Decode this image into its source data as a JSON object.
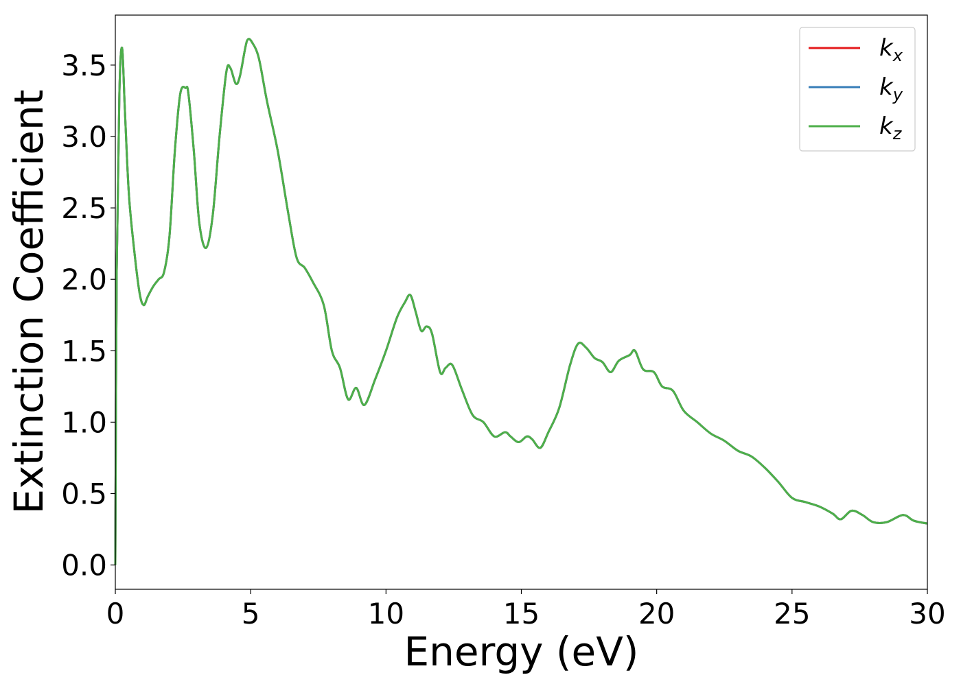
{
  "chart_data": {
    "type": "line",
    "title": "",
    "xlabel": "Energy (eV)",
    "ylabel": "Extinction Coefficient",
    "xlim": [
      0,
      30
    ],
    "ylim": [
      -0.17,
      3.85
    ],
    "xticks": [
      0,
      5,
      10,
      15,
      20,
      25,
      30
    ],
    "xtick_labels": [
      "0",
      "5",
      "10",
      "15",
      "20",
      "25",
      "30"
    ],
    "yticks": [
      0.0,
      0.5,
      1.0,
      1.5,
      2.0,
      2.5,
      3.0,
      3.5
    ],
    "ytick_labels": [
      "0.0",
      "0.5",
      "1.0",
      "1.5",
      "2.0",
      "2.5",
      "3.0",
      "3.5"
    ],
    "grid": false,
    "legend_position": "top-right",
    "series": [
      {
        "name": "k",
        "subscript": "x",
        "color": "#e41a1c",
        "x": [
          0,
          0.05,
          0.15,
          0.25,
          0.35,
          0.5,
          0.7,
          0.9,
          1.05,
          1.2,
          1.4,
          1.6,
          1.8,
          2.0,
          2.2,
          2.4,
          2.6,
          2.7,
          2.9,
          3.1,
          3.35,
          3.6,
          3.85,
          4.1,
          4.25,
          4.45,
          4.6,
          4.8,
          4.9,
          5.05,
          5.3,
          5.6,
          6.0,
          6.4,
          6.7,
          7.0,
          7.3,
          7.7,
          8.0,
          8.3,
          8.6,
          8.9,
          9.2,
          9.6,
          10.0,
          10.4,
          10.7,
          10.9,
          11.1,
          11.3,
          11.5,
          11.7,
          12.0,
          12.2,
          12.45,
          12.8,
          13.2,
          13.6,
          14.0,
          14.4,
          14.6,
          14.9,
          15.2,
          15.4,
          15.7,
          16.0,
          16.4,
          16.8,
          17.1,
          17.4,
          17.7,
          18.0,
          18.3,
          18.6,
          19.0,
          19.2,
          19.5,
          19.9,
          20.2,
          20.6,
          21.0,
          21.5,
          22.0,
          22.5,
          23.0,
          23.5,
          24.0,
          24.5,
          25.0,
          25.5,
          26.0,
          26.5,
          26.8,
          27.2,
          27.6,
          28.0,
          28.5,
          29.1,
          29.5,
          30.0
        ],
        "values": [
          0.0,
          2.05,
          3.3,
          3.62,
          3.2,
          2.6,
          2.2,
          1.9,
          1.82,
          1.88,
          1.95,
          2.0,
          2.05,
          2.3,
          2.9,
          3.3,
          3.34,
          3.3,
          2.9,
          2.4,
          2.22,
          2.45,
          3.0,
          3.45,
          3.48,
          3.37,
          3.42,
          3.62,
          3.68,
          3.66,
          3.55,
          3.25,
          2.9,
          2.45,
          2.15,
          2.08,
          1.98,
          1.82,
          1.5,
          1.38,
          1.16,
          1.24,
          1.12,
          1.3,
          1.5,
          1.73,
          1.84,
          1.89,
          1.77,
          1.64,
          1.67,
          1.62,
          1.35,
          1.38,
          1.4,
          1.23,
          1.05,
          1.0,
          0.9,
          0.93,
          0.9,
          0.86,
          0.9,
          0.88,
          0.82,
          0.93,
          1.1,
          1.4,
          1.55,
          1.52,
          1.45,
          1.42,
          1.35,
          1.43,
          1.47,
          1.5,
          1.37,
          1.35,
          1.25,
          1.22,
          1.08,
          1.0,
          0.92,
          0.87,
          0.8,
          0.76,
          0.68,
          0.58,
          0.47,
          0.44,
          0.41,
          0.36,
          0.32,
          0.38,
          0.35,
          0.3,
          0.3,
          0.35,
          0.31,
          0.29
        ]
      },
      {
        "name": "k",
        "subscript": "y",
        "color": "#377eb8",
        "x": [
          0,
          0.05,
          0.15,
          0.25,
          0.35,
          0.5,
          0.7,
          0.9,
          1.05,
          1.2,
          1.4,
          1.6,
          1.8,
          2.0,
          2.2,
          2.4,
          2.6,
          2.7,
          2.9,
          3.1,
          3.35,
          3.6,
          3.85,
          4.1,
          4.25,
          4.45,
          4.6,
          4.8,
          4.9,
          5.05,
          5.3,
          5.6,
          6.0,
          6.4,
          6.7,
          7.0,
          7.3,
          7.7,
          8.0,
          8.3,
          8.6,
          8.9,
          9.2,
          9.6,
          10.0,
          10.4,
          10.7,
          10.9,
          11.1,
          11.3,
          11.5,
          11.7,
          12.0,
          12.2,
          12.45,
          12.8,
          13.2,
          13.6,
          14.0,
          14.4,
          14.6,
          14.9,
          15.2,
          15.4,
          15.7,
          16.0,
          16.4,
          16.8,
          17.1,
          17.4,
          17.7,
          18.0,
          18.3,
          18.6,
          19.0,
          19.2,
          19.5,
          19.9,
          20.2,
          20.6,
          21.0,
          21.5,
          22.0,
          22.5,
          23.0,
          23.5,
          24.0,
          24.5,
          25.0,
          25.5,
          26.0,
          26.5,
          26.8,
          27.2,
          27.6,
          28.0,
          28.5,
          29.1,
          29.5,
          30.0
        ],
        "values": [
          0.0,
          2.05,
          3.3,
          3.62,
          3.2,
          2.6,
          2.2,
          1.9,
          1.82,
          1.88,
          1.95,
          2.0,
          2.05,
          2.3,
          2.9,
          3.3,
          3.34,
          3.3,
          2.9,
          2.4,
          2.22,
          2.45,
          3.0,
          3.45,
          3.48,
          3.37,
          3.42,
          3.62,
          3.68,
          3.66,
          3.55,
          3.25,
          2.9,
          2.45,
          2.15,
          2.08,
          1.98,
          1.82,
          1.5,
          1.38,
          1.16,
          1.24,
          1.12,
          1.3,
          1.5,
          1.73,
          1.84,
          1.89,
          1.77,
          1.64,
          1.67,
          1.62,
          1.35,
          1.38,
          1.4,
          1.23,
          1.05,
          1.0,
          0.9,
          0.93,
          0.9,
          0.86,
          0.9,
          0.88,
          0.82,
          0.93,
          1.1,
          1.4,
          1.55,
          1.52,
          1.45,
          1.42,
          1.35,
          1.43,
          1.47,
          1.5,
          1.37,
          1.35,
          1.25,
          1.22,
          1.08,
          1.0,
          0.92,
          0.87,
          0.8,
          0.76,
          0.68,
          0.58,
          0.47,
          0.44,
          0.41,
          0.36,
          0.32,
          0.38,
          0.35,
          0.3,
          0.3,
          0.35,
          0.31,
          0.29
        ]
      },
      {
        "name": "k",
        "subscript": "z",
        "color": "#4daf4a",
        "x": [
          0,
          0.05,
          0.15,
          0.25,
          0.35,
          0.5,
          0.7,
          0.9,
          1.05,
          1.2,
          1.4,
          1.6,
          1.8,
          2.0,
          2.2,
          2.4,
          2.6,
          2.7,
          2.9,
          3.1,
          3.35,
          3.6,
          3.85,
          4.1,
          4.25,
          4.45,
          4.6,
          4.8,
          4.9,
          5.05,
          5.3,
          5.6,
          6.0,
          6.4,
          6.7,
          7.0,
          7.3,
          7.7,
          8.0,
          8.3,
          8.6,
          8.9,
          9.2,
          9.6,
          10.0,
          10.4,
          10.7,
          10.9,
          11.1,
          11.3,
          11.5,
          11.7,
          12.0,
          12.2,
          12.45,
          12.8,
          13.2,
          13.6,
          14.0,
          14.4,
          14.6,
          14.9,
          15.2,
          15.4,
          15.7,
          16.0,
          16.4,
          16.8,
          17.1,
          17.4,
          17.7,
          18.0,
          18.3,
          18.6,
          19.0,
          19.2,
          19.5,
          19.9,
          20.2,
          20.6,
          21.0,
          21.5,
          22.0,
          22.5,
          23.0,
          23.5,
          24.0,
          24.5,
          25.0,
          25.5,
          26.0,
          26.5,
          26.8,
          27.2,
          27.6,
          28.0,
          28.5,
          29.1,
          29.5,
          30.0
        ],
        "values": [
          0.0,
          2.05,
          3.3,
          3.62,
          3.2,
          2.6,
          2.2,
          1.9,
          1.82,
          1.88,
          1.95,
          2.0,
          2.05,
          2.3,
          2.9,
          3.3,
          3.34,
          3.3,
          2.9,
          2.4,
          2.22,
          2.45,
          3.0,
          3.45,
          3.48,
          3.37,
          3.42,
          3.62,
          3.68,
          3.66,
          3.55,
          3.25,
          2.9,
          2.45,
          2.15,
          2.08,
          1.98,
          1.82,
          1.5,
          1.38,
          1.16,
          1.24,
          1.12,
          1.3,
          1.5,
          1.73,
          1.84,
          1.89,
          1.77,
          1.64,
          1.67,
          1.62,
          1.35,
          1.38,
          1.4,
          1.23,
          1.05,
          1.0,
          0.9,
          0.93,
          0.9,
          0.86,
          0.9,
          0.88,
          0.82,
          0.93,
          1.1,
          1.4,
          1.55,
          1.52,
          1.45,
          1.42,
          1.35,
          1.43,
          1.47,
          1.5,
          1.37,
          1.35,
          1.25,
          1.22,
          1.08,
          1.0,
          0.92,
          0.87,
          0.8,
          0.76,
          0.68,
          0.58,
          0.47,
          0.44,
          0.41,
          0.36,
          0.32,
          0.38,
          0.35,
          0.3,
          0.3,
          0.35,
          0.31,
          0.29
        ]
      }
    ]
  }
}
